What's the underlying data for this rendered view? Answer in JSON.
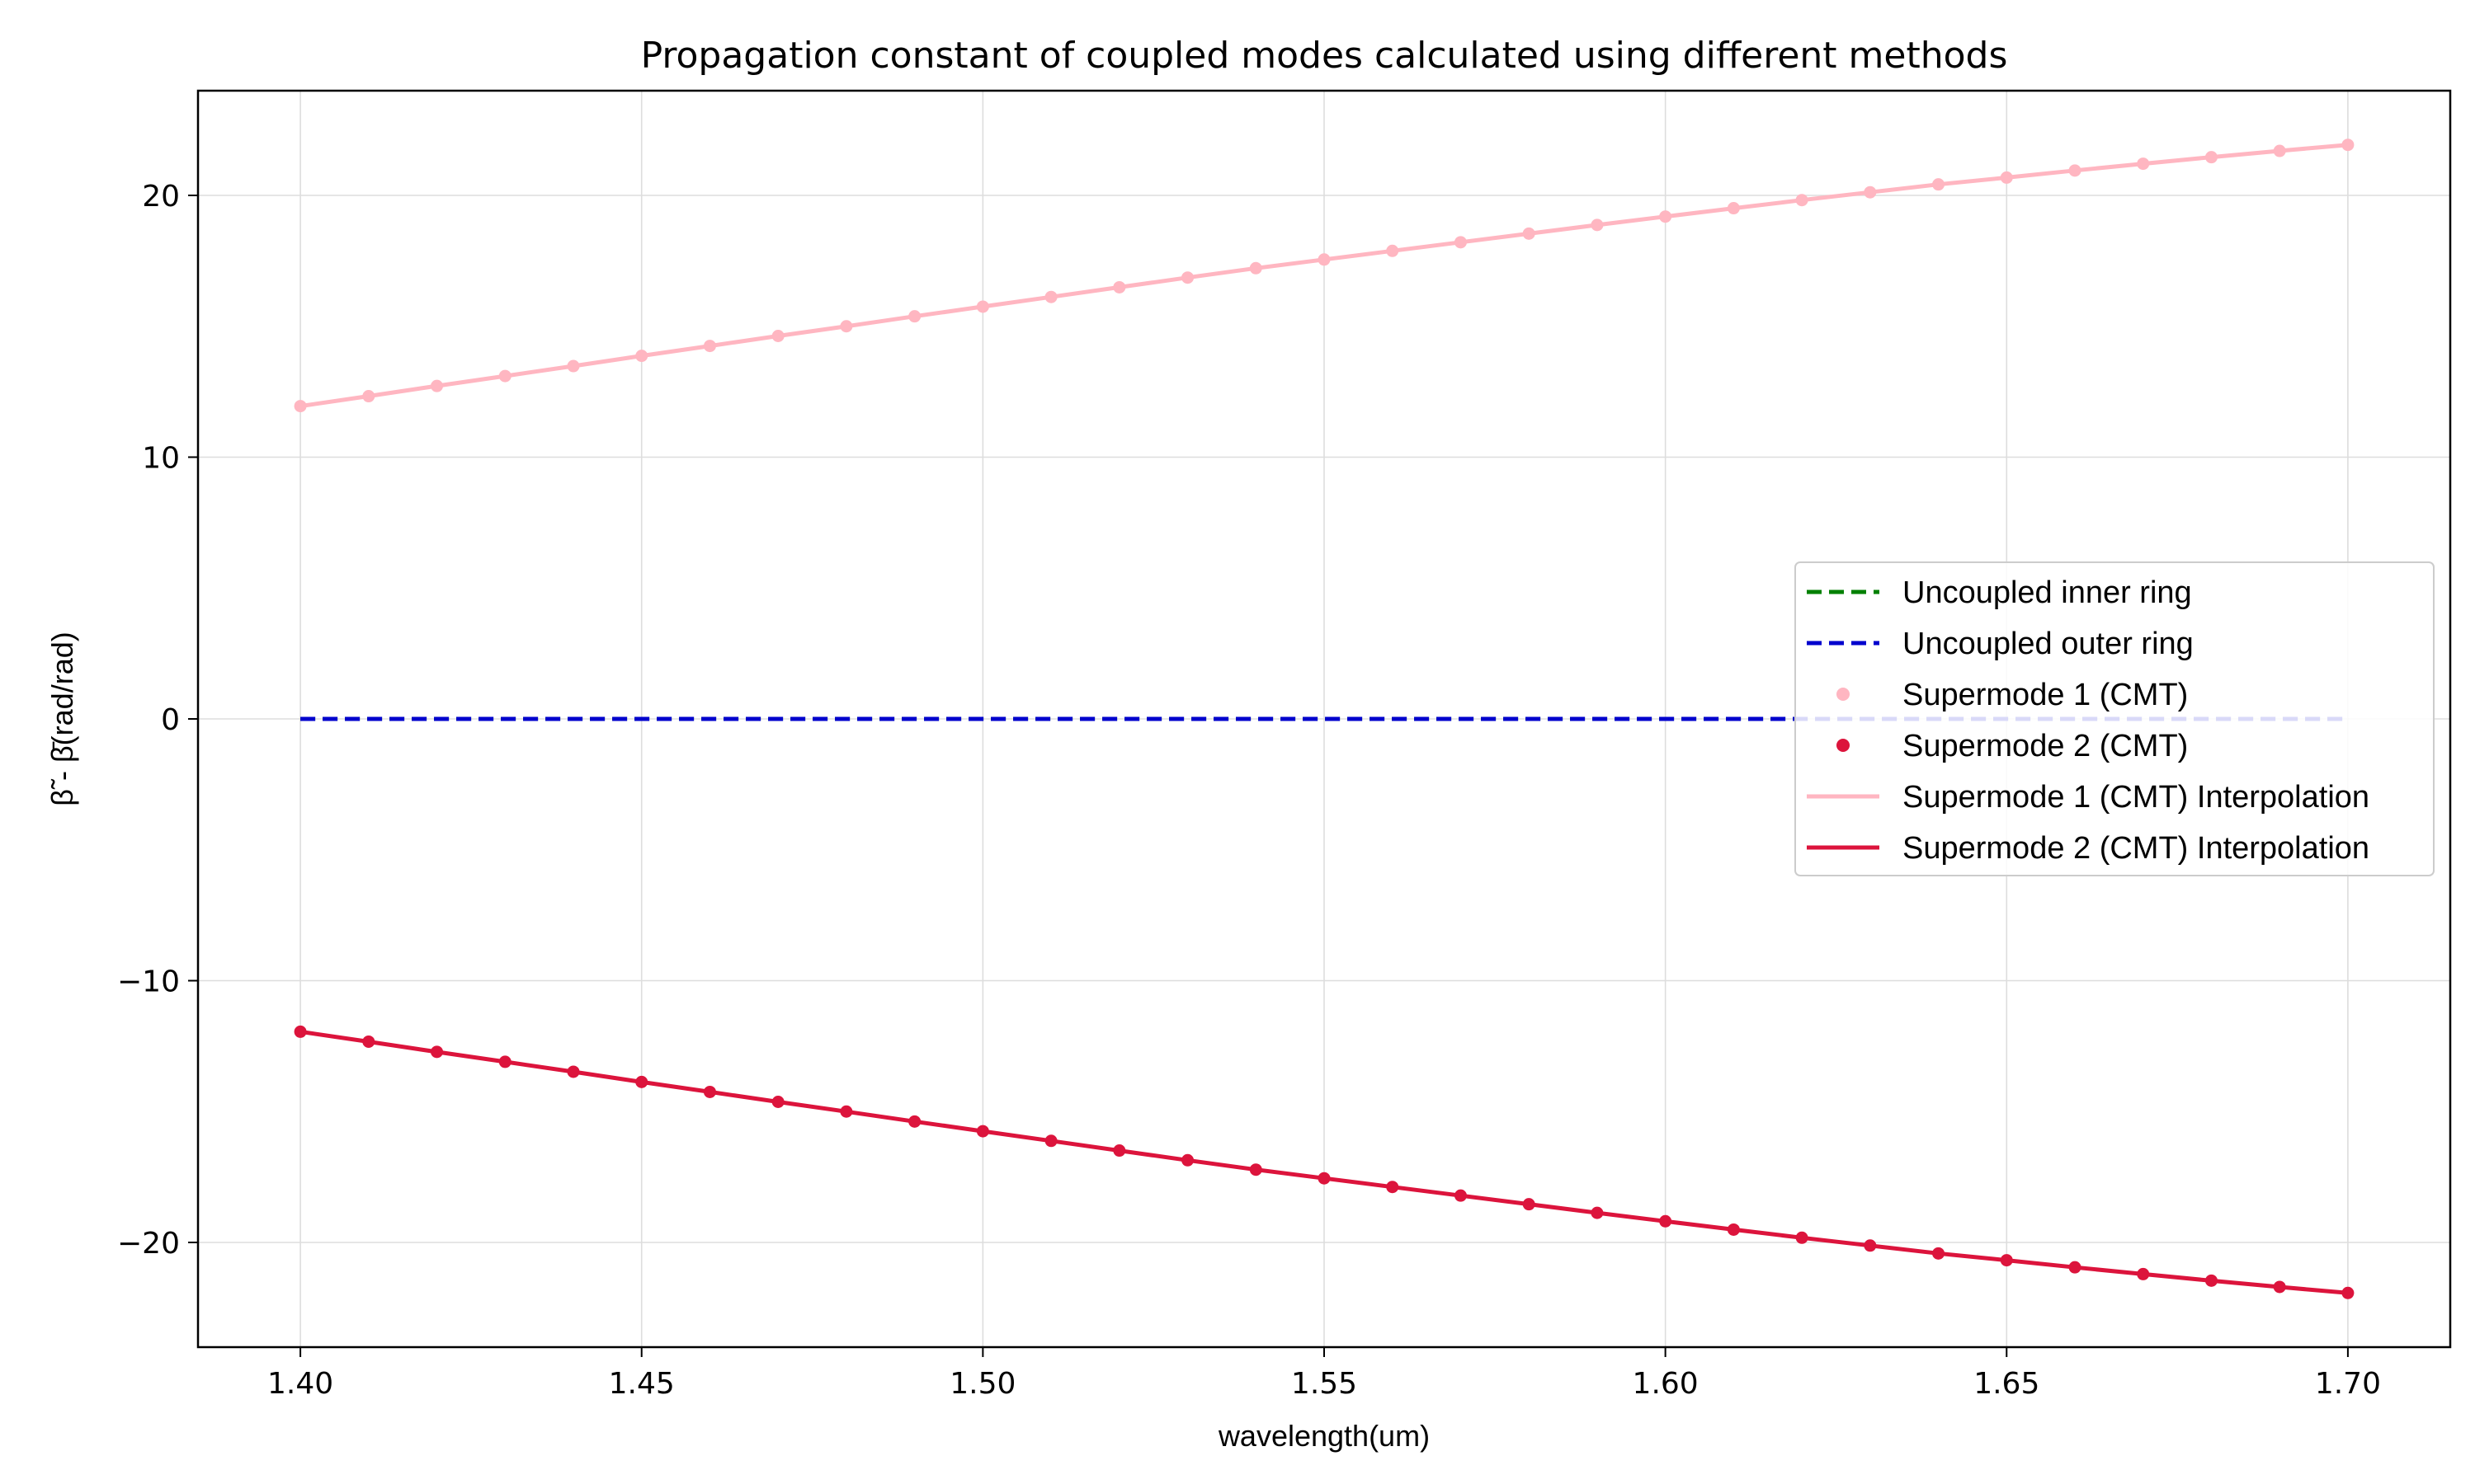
{
  "chart_data": {
    "type": "line",
    "title": "Propagation constant of coupled modes calculated using different methods",
    "xlabel": "wavelength(um)",
    "ylabel": "β̃ - β̄(rad/rad)",
    "xlim": [
      1.385,
      1.715
    ],
    "ylim": [
      -24,
      24
    ],
    "xticks": [
      1.4,
      1.45,
      1.5,
      1.55,
      1.6,
      1.65,
      1.7
    ],
    "xtick_labels": [
      "1.40",
      "1.45",
      "1.50",
      "1.55",
      "1.60",
      "1.65",
      "1.70"
    ],
    "yticks": [
      -20,
      -10,
      0,
      10,
      20
    ],
    "ytick_labels": [
      "−20",
      "−10",
      "0",
      "10",
      "20"
    ],
    "grid": true,
    "legend_position": "center-right",
    "x": [
      1.4,
      1.41,
      1.42,
      1.43,
      1.44,
      1.45,
      1.46,
      1.47,
      1.48,
      1.49,
      1.5,
      1.51,
      1.52,
      1.53,
      1.54,
      1.55,
      1.56,
      1.57,
      1.58,
      1.59,
      1.6,
      1.61,
      1.62,
      1.63,
      1.64,
      1.65,
      1.66,
      1.67,
      1.68,
      1.69,
      1.7
    ],
    "series": [
      {
        "name": "Uncoupled inner ring",
        "kind": "dashed-line",
        "color": "#008000",
        "values": [
          0,
          0,
          0,
          0,
          0,
          0,
          0,
          0,
          0,
          0,
          0,
          0,
          0,
          0,
          0,
          0,
          0,
          0,
          0,
          0,
          0,
          0,
          0,
          0,
          0,
          0,
          0,
          0,
          0,
          0,
          0
        ]
      },
      {
        "name": "Uncoupled outer ring",
        "kind": "dashed-line",
        "color": "#0000cd",
        "values": [
          0,
          0,
          0,
          0,
          0,
          0,
          0,
          0,
          0,
          0,
          0,
          0,
          0,
          0,
          0,
          0,
          0,
          0,
          0,
          0,
          0,
          0,
          0,
          0,
          0,
          0,
          0,
          0,
          0,
          0,
          0
        ]
      },
      {
        "name": "Supermode 1 (CMT)",
        "kind": "markers",
        "color": "#ffb6c1",
        "values": [
          11.95,
          12.33,
          12.72,
          13.1,
          13.48,
          13.87,
          14.25,
          14.63,
          15.0,
          15.38,
          15.75,
          16.12,
          16.49,
          16.86,
          17.22,
          17.55,
          17.88,
          18.21,
          18.54,
          18.87,
          19.19,
          19.51,
          19.82,
          20.12,
          20.42,
          20.68,
          20.95,
          21.21,
          21.46,
          21.7,
          21.93
        ]
      },
      {
        "name": "Supermode 2 (CMT)",
        "kind": "markers",
        "color": "#dc143c",
        "values": [
          -11.95,
          -12.33,
          -12.72,
          -13.1,
          -13.48,
          -13.87,
          -14.25,
          -14.63,
          -15.0,
          -15.38,
          -15.75,
          -16.12,
          -16.49,
          -16.86,
          -17.22,
          -17.55,
          -17.88,
          -18.21,
          -18.54,
          -18.87,
          -19.19,
          -19.51,
          -19.82,
          -20.12,
          -20.42,
          -20.68,
          -20.95,
          -21.21,
          -21.46,
          -21.7,
          -21.93
        ]
      },
      {
        "name": "Supermode 1 (CMT) Interpolation",
        "kind": "line",
        "color": "#ffb6c1",
        "values": [
          11.95,
          12.33,
          12.72,
          13.1,
          13.48,
          13.87,
          14.25,
          14.63,
          15.0,
          15.38,
          15.75,
          16.12,
          16.49,
          16.86,
          17.22,
          17.55,
          17.88,
          18.21,
          18.54,
          18.87,
          19.19,
          19.51,
          19.82,
          20.12,
          20.42,
          20.68,
          20.95,
          21.21,
          21.46,
          21.7,
          21.93
        ]
      },
      {
        "name": "Supermode 2 (CMT) Interpolation",
        "kind": "line",
        "color": "#dc143c",
        "values": [
          -11.95,
          -12.33,
          -12.72,
          -13.1,
          -13.48,
          -13.87,
          -14.25,
          -14.63,
          -15.0,
          -15.38,
          -15.75,
          -16.12,
          -16.49,
          -16.86,
          -17.22,
          -17.55,
          -17.88,
          -18.21,
          -18.54,
          -18.87,
          -19.19,
          -19.51,
          -19.82,
          -20.12,
          -20.42,
          -20.68,
          -20.95,
          -21.21,
          -21.46,
          -21.7,
          -21.93
        ]
      }
    ]
  }
}
